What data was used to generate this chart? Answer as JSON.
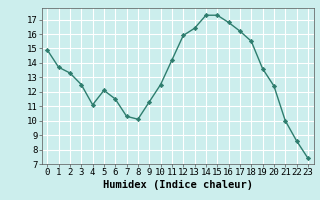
{
  "x": [
    0,
    1,
    2,
    3,
    4,
    5,
    6,
    7,
    8,
    9,
    10,
    11,
    12,
    13,
    14,
    15,
    16,
    17,
    18,
    19,
    20,
    21,
    22,
    23
  ],
  "y": [
    14.9,
    13.7,
    13.3,
    12.5,
    11.1,
    12.1,
    11.5,
    10.3,
    10.1,
    11.3,
    12.5,
    14.2,
    15.9,
    16.4,
    17.3,
    17.3,
    16.8,
    16.2,
    15.5,
    13.6,
    12.4,
    10.0,
    8.6,
    7.4
  ],
  "line_color": "#2e7d6e",
  "marker": "D",
  "marker_size": 2.2,
  "bg_color": "#cceeed",
  "grid_color": "#ffffff",
  "xlabel": "Humidex (Indice chaleur)",
  "ylim": [
    7,
    17.8
  ],
  "xlim": [
    -0.5,
    23.5
  ],
  "yticks": [
    7,
    8,
    9,
    10,
    11,
    12,
    13,
    14,
    15,
    16,
    17
  ],
  "xticks": [
    0,
    1,
    2,
    3,
    4,
    5,
    6,
    7,
    8,
    9,
    10,
    11,
    12,
    13,
    14,
    15,
    16,
    17,
    18,
    19,
    20,
    21,
    22,
    23
  ],
  "xlabel_fontsize": 7.5,
  "tick_fontsize": 6.5,
  "linewidth": 1.0
}
